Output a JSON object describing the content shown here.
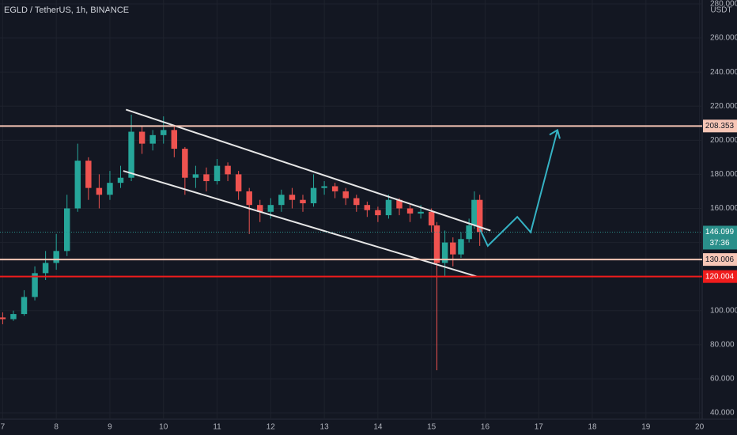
{
  "chart_data": {
    "type": "candlestick",
    "title": "EGLD / TetherUS, 1h, BINANCE",
    "currency": "USDT",
    "up_color": "#26a69a",
    "down_color": "#ef5350",
    "x": [
      7.0,
      7.2,
      7.4,
      7.6,
      7.8,
      8.0,
      8.2,
      8.4,
      8.6,
      8.8,
      9.0,
      9.2,
      9.4,
      9.6,
      9.8,
      10.0,
      10.2,
      10.4,
      10.6,
      10.8,
      11.0,
      11.2,
      11.4,
      11.6,
      11.8,
      12.0,
      12.2,
      12.4,
      12.6,
      12.8,
      13.0,
      13.2,
      13.4,
      13.6,
      13.8,
      14.0,
      14.2,
      14.4,
      14.6,
      14.8,
      15.0,
      15.1,
      15.25,
      15.4,
      15.55,
      15.7,
      15.8,
      15.9
    ],
    "open": [
      96,
      95,
      98,
      108,
      122,
      128,
      135,
      160,
      188,
      172,
      168,
      175,
      178,
      205,
      198,
      203,
      206,
      195,
      178,
      180,
      176,
      185,
      180,
      170,
      162,
      158,
      162,
      168,
      165,
      163,
      172,
      173,
      170,
      166,
      162,
      159,
      156,
      165,
      160,
      157,
      158,
      150,
      128,
      140,
      133,
      142,
      150,
      165
    ],
    "high": [
      99,
      100,
      112,
      126,
      135,
      145,
      168,
      198,
      190,
      180,
      182,
      185,
      215,
      208,
      206,
      214,
      208,
      196,
      185,
      184,
      189,
      187,
      182,
      172,
      165,
      166,
      171,
      172,
      168,
      180,
      176,
      175,
      172,
      168,
      164,
      161,
      168,
      166,
      162,
      162,
      160,
      152,
      147,
      143,
      146,
      154,
      170,
      168
    ],
    "low": [
      92,
      94,
      97,
      106,
      118,
      124,
      132,
      158,
      165,
      160,
      165,
      172,
      176,
      192,
      194,
      198,
      190,
      168,
      172,
      170,
      174,
      176,
      165,
      145,
      152,
      154,
      158,
      160,
      158,
      161,
      168,
      166,
      162,
      158,
      155,
      152,
      154,
      156,
      152,
      154,
      146,
      65,
      120,
      126,
      131,
      140,
      148,
      138
    ],
    "close": [
      95,
      98,
      108,
      122,
      128,
      135,
      160,
      188,
      172,
      168,
      175,
      178,
      205,
      198,
      203,
      206,
      195,
      178,
      180,
      176,
      185,
      180,
      170,
      162,
      158,
      162,
      168,
      165,
      163,
      172,
      173,
      170,
      166,
      162,
      159,
      156,
      165,
      160,
      157,
      158,
      150,
      128,
      140,
      133,
      142,
      150,
      165,
      146.099
    ],
    "xlim": [
      6.95,
      20.05
    ],
    "xticks": [
      7,
      8,
      9,
      10,
      11,
      12,
      13,
      14,
      15,
      16,
      17,
      18,
      19,
      20
    ],
    "ylim": [
      36.3,
      282.3
    ],
    "yticks": [
      {
        "value": 40,
        "label": "40.000"
      },
      {
        "value": 60,
        "label": "60.000"
      },
      {
        "value": 80,
        "label": "80.000"
      },
      {
        "value": 100,
        "label": "100.000"
      },
      {
        "value": 120,
        "label": "120.000"
      },
      {
        "value": 140,
        "label": "140.000"
      },
      {
        "value": 160,
        "label": "160.000"
      },
      {
        "value": 180,
        "label": "180.000"
      },
      {
        "value": 200,
        "label": "200.000"
      },
      {
        "value": 220,
        "label": "220.000"
      },
      {
        "value": 240,
        "label": "240.000"
      },
      {
        "value": 260,
        "label": "260.000"
      },
      {
        "value": 280,
        "label": "280.000"
      }
    ],
    "grid": true,
    "hlines": [
      {
        "value": 208.353,
        "color": "#f7c6b6"
      },
      {
        "value": 130.006,
        "color": "#f7c6b6"
      },
      {
        "value": 120.004,
        "color": "#f01c1c"
      }
    ],
    "last_price": {
      "value": 146.099,
      "color": "#2a8f8a",
      "countdown": "37:36"
    },
    "channel": [
      {
        "x": [
          9.3,
          16.1
        ],
        "y": [
          218,
          147
        ]
      },
      {
        "x": [
          9.25,
          15.85
        ],
        "y": [
          182,
          120
        ]
      }
    ],
    "projection": {
      "color": "#35b2c4",
      "x": [
        15.9,
        16.05,
        16.6,
        16.85,
        17.35
      ],
      "y": [
        148,
        138,
        155,
        146,
        206
      ]
    }
  }
}
